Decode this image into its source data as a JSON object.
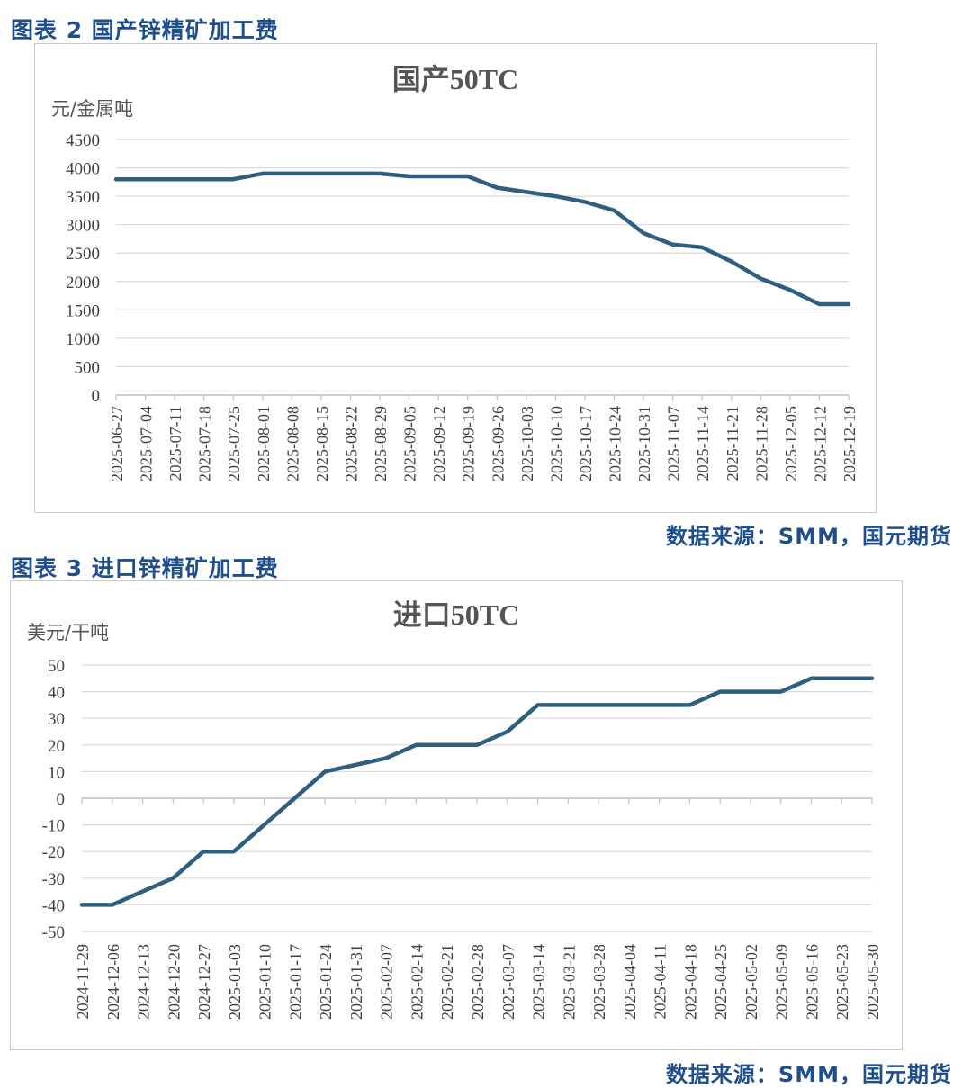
{
  "figures": [
    {
      "caption": "图表 2 国产锌精矿加工费",
      "source": "数据来源：SMM，国元期货",
      "chart_data": {
        "type": "line",
        "title": "国产50TC",
        "ylabel": "元/金属吨",
        "xlabel": "",
        "ylim": [
          0,
          4500
        ],
        "yticks": [
          "4500",
          "4000",
          "3500",
          "3000",
          "2500",
          "2000",
          "1500",
          "1000",
          "500",
          "0"
        ],
        "grid": true,
        "color": "#2e5f80",
        "categories": [
          "2025-06-27",
          "2025-07-04",
          "2025-07-11",
          "2025-07-18",
          "2025-07-25",
          "2025-08-01",
          "2025-08-08",
          "2025-08-15",
          "2025-08-22",
          "2025-08-29",
          "2025-09-05",
          "2025-09-12",
          "2025-09-19",
          "2025-09-26",
          "2025-10-03",
          "2025-10-10",
          "2025-10-17",
          "2025-10-24",
          "2025-10-31",
          "2025-11-07",
          "2025-11-14",
          "2025-11-21",
          "2025-11-28",
          "2025-12-05",
          "2025-12-12",
          "2025-12-19"
        ],
        "values": [
          3800,
          3800,
          3800,
          3800,
          3800,
          3900,
          3900,
          3900,
          3900,
          3900,
          3850,
          3850,
          3850,
          3650,
          3575,
          3500,
          3400,
          3250,
          2850,
          2650,
          2600,
          2350,
          2050,
          1850,
          1600,
          1600
        ]
      }
    },
    {
      "caption": "图表 3 进口锌精矿加工费",
      "source": "数据来源：SMM，国元期货",
      "chart_data": {
        "type": "line",
        "title": "进口50TC",
        "ylabel": "美元/干吨",
        "xlabel": "",
        "ylim": [
          -50,
          50
        ],
        "yticks": [
          "50",
          "40",
          "30",
          "20",
          "10",
          "0",
          "-10",
          "-20",
          "-30",
          "-40",
          "-50"
        ],
        "grid": true,
        "color": "#2e5f80",
        "categories": [
          "2024-11-29",
          "2024-12-06",
          "2024-12-13",
          "2024-12-20",
          "2024-12-27",
          "2025-01-03",
          "2025-01-10",
          "2025-01-17",
          "2025-01-24",
          "2025-01-31",
          "2025-02-07",
          "2025-02-14",
          "2025-02-21",
          "2025-02-28",
          "2025-03-07",
          "2025-03-14",
          "2025-03-21",
          "2025-03-28",
          "2025-04-04",
          "2025-04-11",
          "2025-04-18",
          "2025-04-25",
          "2025-05-02",
          "2025-05-09",
          "2025-05-16",
          "2025-05-23",
          "2025-05-30"
        ],
        "values": [
          -40,
          -40,
          -35,
          -30,
          -20,
          -20,
          -10,
          0,
          10,
          12.5,
          15,
          20,
          20,
          20,
          25,
          35,
          35,
          35,
          35,
          35,
          35,
          40,
          40,
          40,
          45,
          45,
          45
        ]
      }
    }
  ]
}
